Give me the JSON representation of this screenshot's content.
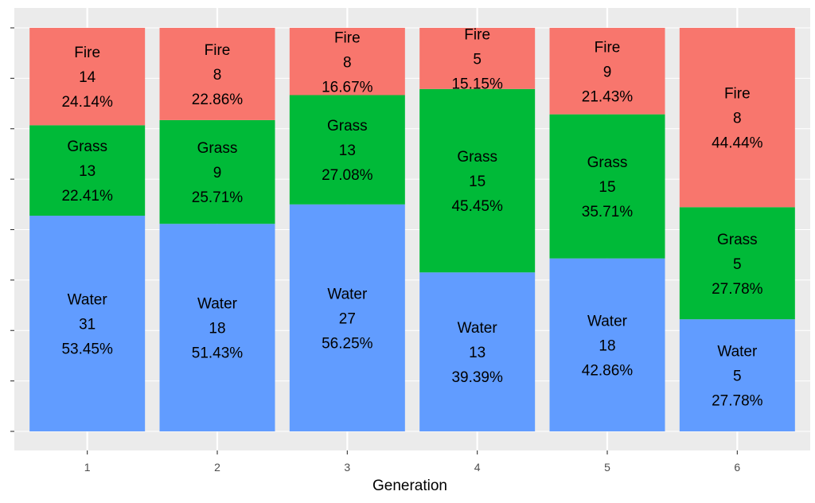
{
  "chart_data": {
    "type": "bar",
    "stacked": "percent",
    "title": "",
    "xlabel": "Generation",
    "ylabel": "",
    "categories": [
      "1",
      "2",
      "3",
      "4",
      "5",
      "6"
    ],
    "ylim": [
      0,
      1
    ],
    "series": [
      {
        "name": "Water",
        "color": "#619CFF",
        "values": [
          31,
          18,
          27,
          13,
          18,
          5
        ],
        "percents": [
          "53.45%",
          "51.43%",
          "56.25%",
          "39.39%",
          "42.86%",
          "27.78%"
        ]
      },
      {
        "name": "Grass",
        "color": "#00BA38",
        "values": [
          13,
          9,
          13,
          15,
          15,
          5
        ],
        "percents": [
          "22.41%",
          "25.71%",
          "27.08%",
          "45.45%",
          "35.71%",
          "27.78%"
        ]
      },
      {
        "name": "Fire",
        "color": "#F8766D",
        "values": [
          14,
          8,
          8,
          5,
          9,
          8
        ],
        "percents": [
          "24.14%",
          "22.86%",
          "16.67%",
          "15.15%",
          "21.43%",
          "44.44%"
        ]
      }
    ],
    "panel_background": "#EBEBEB",
    "gridline_color": "#FFFFFF",
    "legend": "none",
    "grid": true
  }
}
